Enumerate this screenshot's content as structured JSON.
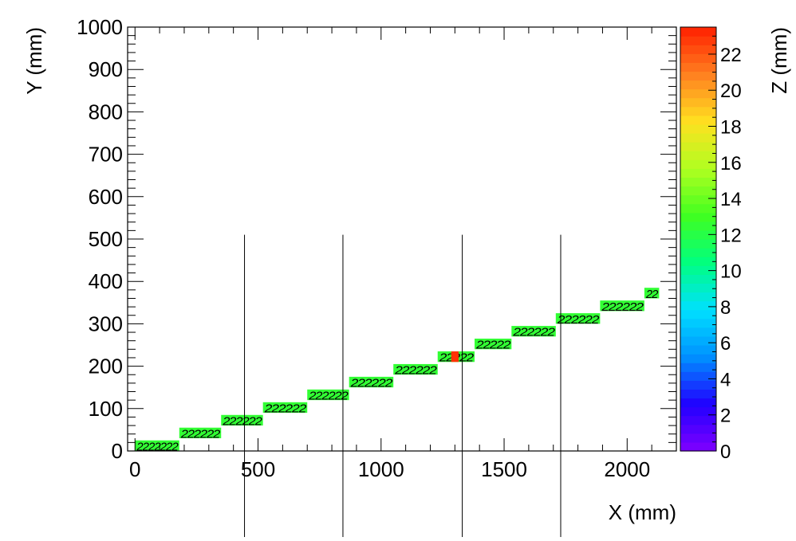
{
  "chart_data": {
    "type": "heatmap",
    "xlabel": "X (mm)",
    "ylabel": "Y (mm)",
    "zlabel": "Z (mm)",
    "xlim": [
      -30,
      2200
    ],
    "ylim": [
      0,
      1000
    ],
    "zlim": [
      0,
      23.5
    ],
    "x_ticks": [
      0,
      500,
      1000,
      1500,
      2000
    ],
    "y_ticks": [
      0,
      100,
      200,
      300,
      400,
      500,
      600,
      700,
      800,
      900,
      1000
    ],
    "z_ticks": [
      0,
      2,
      4,
      6,
      8,
      10,
      12,
      14,
      16,
      18,
      20,
      22
    ],
    "cell_marker": "2",
    "colorscale": [
      "#8000ff",
      "#2000ff",
      "#0090ff",
      "#00e0ff",
      "#00ff80",
      "#40ff20",
      "#b0ff20",
      "#ffe020",
      "#ff8020",
      "#ff2000"
    ],
    "vertical_lines_x": [
      445,
      845,
      1330,
      1730
    ],
    "vertical_lines_y_top": 510,
    "segments": [
      {
        "x0": 0,
        "x1": 180,
        "y0": 0,
        "y1": 25,
        "z": 12.5,
        "label": "2222222"
      },
      {
        "x0": 180,
        "x1": 350,
        "y0": 30,
        "y1": 55,
        "z": 12.5,
        "label": "222222"
      },
      {
        "x0": 350,
        "x1": 520,
        "y0": 60,
        "y1": 85,
        "z": 12.5,
        "label": "222222"
      },
      {
        "x0": 520,
        "x1": 700,
        "y0": 90,
        "y1": 115,
        "z": 12.5,
        "label": "222222"
      },
      {
        "x0": 700,
        "x1": 870,
        "y0": 120,
        "y1": 145,
        "z": 12.5,
        "label": "222222"
      },
      {
        "x0": 870,
        "x1": 1050,
        "y0": 150,
        "y1": 175,
        "z": 12.5,
        "label": "222222"
      },
      {
        "x0": 1050,
        "x1": 1230,
        "y0": 180,
        "y1": 205,
        "z": 12.5,
        "label": "222222"
      },
      {
        "x0": 1230,
        "x1": 1380,
        "y0": 210,
        "y1": 235,
        "z": 12.5,
        "label": "22222"
      },
      {
        "x0": 1380,
        "x1": 1530,
        "y0": 240,
        "y1": 265,
        "z": 12.5,
        "label": "22222"
      },
      {
        "x0": 1530,
        "x1": 1710,
        "y0": 270,
        "y1": 295,
        "z": 12.5,
        "label": "222222"
      },
      {
        "x0": 1710,
        "x1": 1890,
        "y0": 300,
        "y1": 325,
        "z": 12.5,
        "label": "222222"
      },
      {
        "x0": 1890,
        "x1": 2070,
        "y0": 330,
        "y1": 355,
        "z": 12.5,
        "label": "222222"
      },
      {
        "x0": 2070,
        "x1": 2130,
        "y0": 360,
        "y1": 385,
        "z": 12.5,
        "label": "22"
      },
      {
        "x0": 1285,
        "x1": 1315,
        "y0": 210,
        "y1": 235,
        "z": 23.0,
        "label": ""
      }
    ]
  }
}
